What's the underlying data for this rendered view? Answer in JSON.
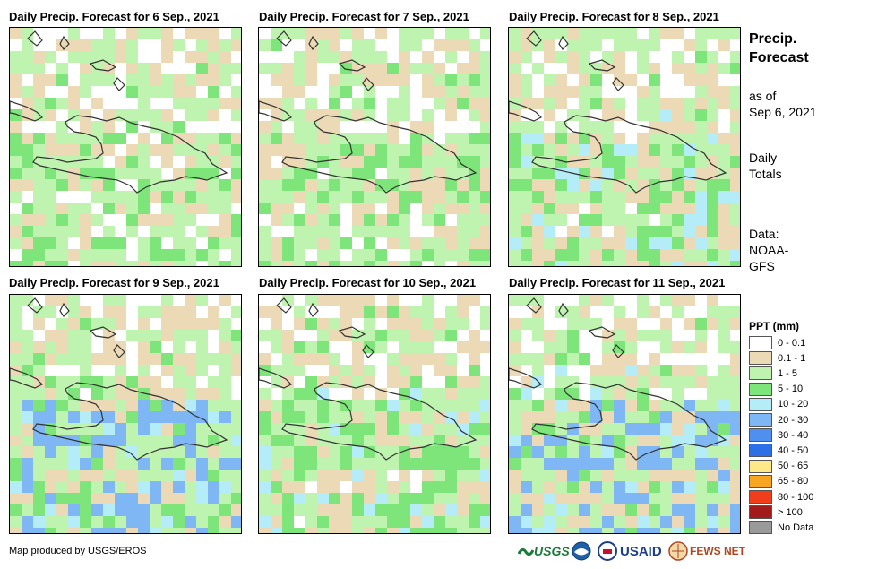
{
  "panels": [
    {
      "title": "Daily Precip. Forecast for 6 Sep., 2021",
      "seed": 11,
      "wet": 0.9
    },
    {
      "title": "Daily Precip. Forecast for 7 Sep., 2021",
      "seed": 23,
      "wet": 1.0
    },
    {
      "title": "Daily Precip. Forecast for 8 Sep., 2021",
      "seed": 37,
      "wet": 1.2
    },
    {
      "title": "Daily Precip. Forecast for 9 Sep., 2021",
      "seed": 41,
      "wet": 1.5
    },
    {
      "title": "Daily Precip. Forecast for 10 Sep., 2021",
      "seed": 53,
      "wet": 1.3
    },
    {
      "title": "Daily Precip. Forecast for 11 Sep., 2021",
      "seed": 67,
      "wet": 1.6
    }
  ],
  "side": {
    "title_line1": "Precip.",
    "title_line2": "Forecast",
    "asof_line1": "as of",
    "asof_line2": "Sep 6, 2021",
    "daily_line1": "Daily",
    "daily_line2": "Totals",
    "data_line1": "Data:",
    "data_line2": "NOAA-",
    "data_line3": "GFS"
  },
  "legend": {
    "title": "PPT (mm)",
    "items": [
      {
        "label": "0 - 0.1",
        "color": "#ffffff"
      },
      {
        "label": "0.1 - 1",
        "color": "#ecd9b5"
      },
      {
        "label": "1 - 5",
        "color": "#bff3b0"
      },
      {
        "label": "5 - 10",
        "color": "#7de57a"
      },
      {
        "label": "10 - 20",
        "color": "#b4ecf7"
      },
      {
        "label": "20 - 30",
        "color": "#7fb7f5"
      },
      {
        "label": "30 - 40",
        "color": "#4f8ff0"
      },
      {
        "label": "40 - 50",
        "color": "#2d6fe6"
      },
      {
        "label": "50 - 65",
        "color": "#fde98a"
      },
      {
        "label": "65 - 80",
        "color": "#f6a623"
      },
      {
        "label": "80 - 100",
        "color": "#f23d1a"
      },
      {
        "label": "> 100",
        "color": "#a31a1a"
      },
      {
        "label": "No Data",
        "color": "#9a9a9a"
      }
    ]
  },
  "footer": "Map produced by USGS/EROS",
  "logos": {
    "usgs": "USGS",
    "noaa": "NOAA",
    "usaid": "USAID",
    "fews": "FEWS NET"
  }
}
